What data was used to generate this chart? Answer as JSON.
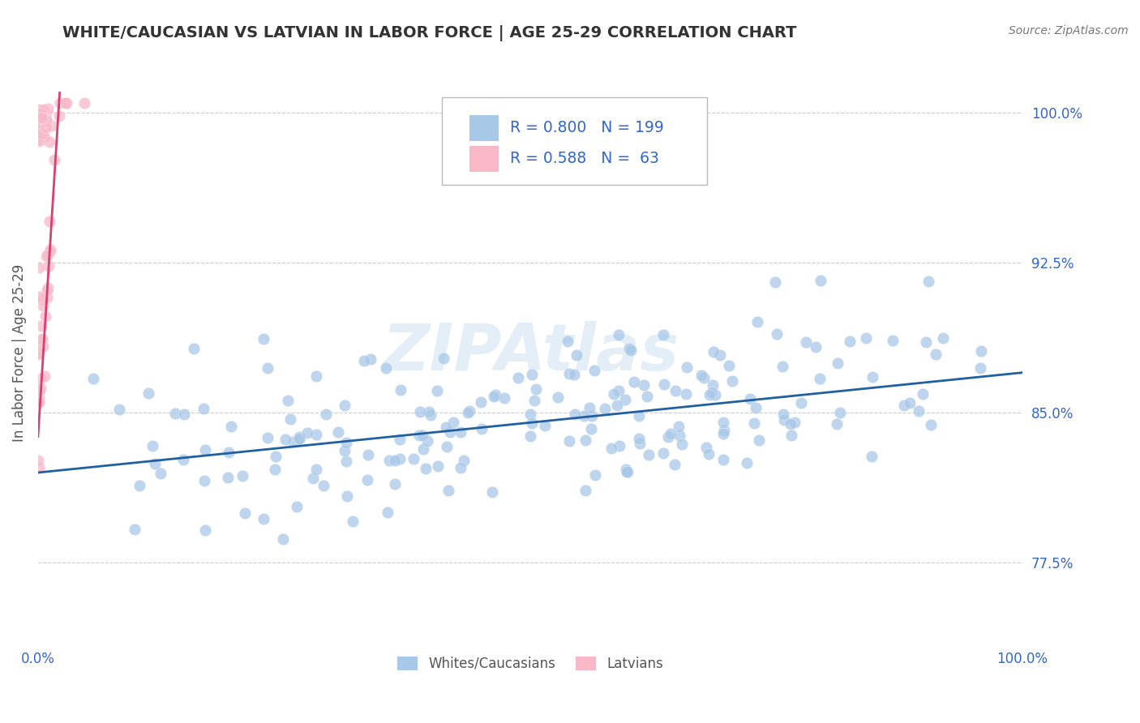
{
  "title": "WHITE/CAUCASIAN VS LATVIAN IN LABOR FORCE | AGE 25-29 CORRELATION CHART",
  "source_text": "Source: ZipAtlas.com",
  "ylabel": "In Labor Force | Age 25-29",
  "xlim": [
    0.0,
    1.0
  ],
  "ylim": [
    0.735,
    1.025
  ],
  "yticks": [
    0.775,
    0.85,
    0.925,
    1.0
  ],
  "ytick_labels": [
    "77.5%",
    "85.0%",
    "92.5%",
    "100.0%"
  ],
  "xtick_labels": [
    "0.0%",
    "100.0%"
  ],
  "xticks": [
    0.0,
    1.0
  ],
  "blue_R": 0.8,
  "blue_N": 199,
  "pink_R": 0.588,
  "pink_N": 63,
  "blue_color": "#a8c8e8",
  "pink_color": "#f8b8c8",
  "blue_line_color": "#2060a0",
  "pink_line_color": "#d84070",
  "legend_text_color": "#3366cc",
  "watermark": "ZIPAtlas",
  "background_color": "#ffffff",
  "grid_color": "#cccccc",
  "title_color": "#333333",
  "blue_intercept": 0.82,
  "blue_slope": 0.05,
  "pink_intercept": 0.835,
  "pink_slope": 8.0,
  "seed": 42
}
